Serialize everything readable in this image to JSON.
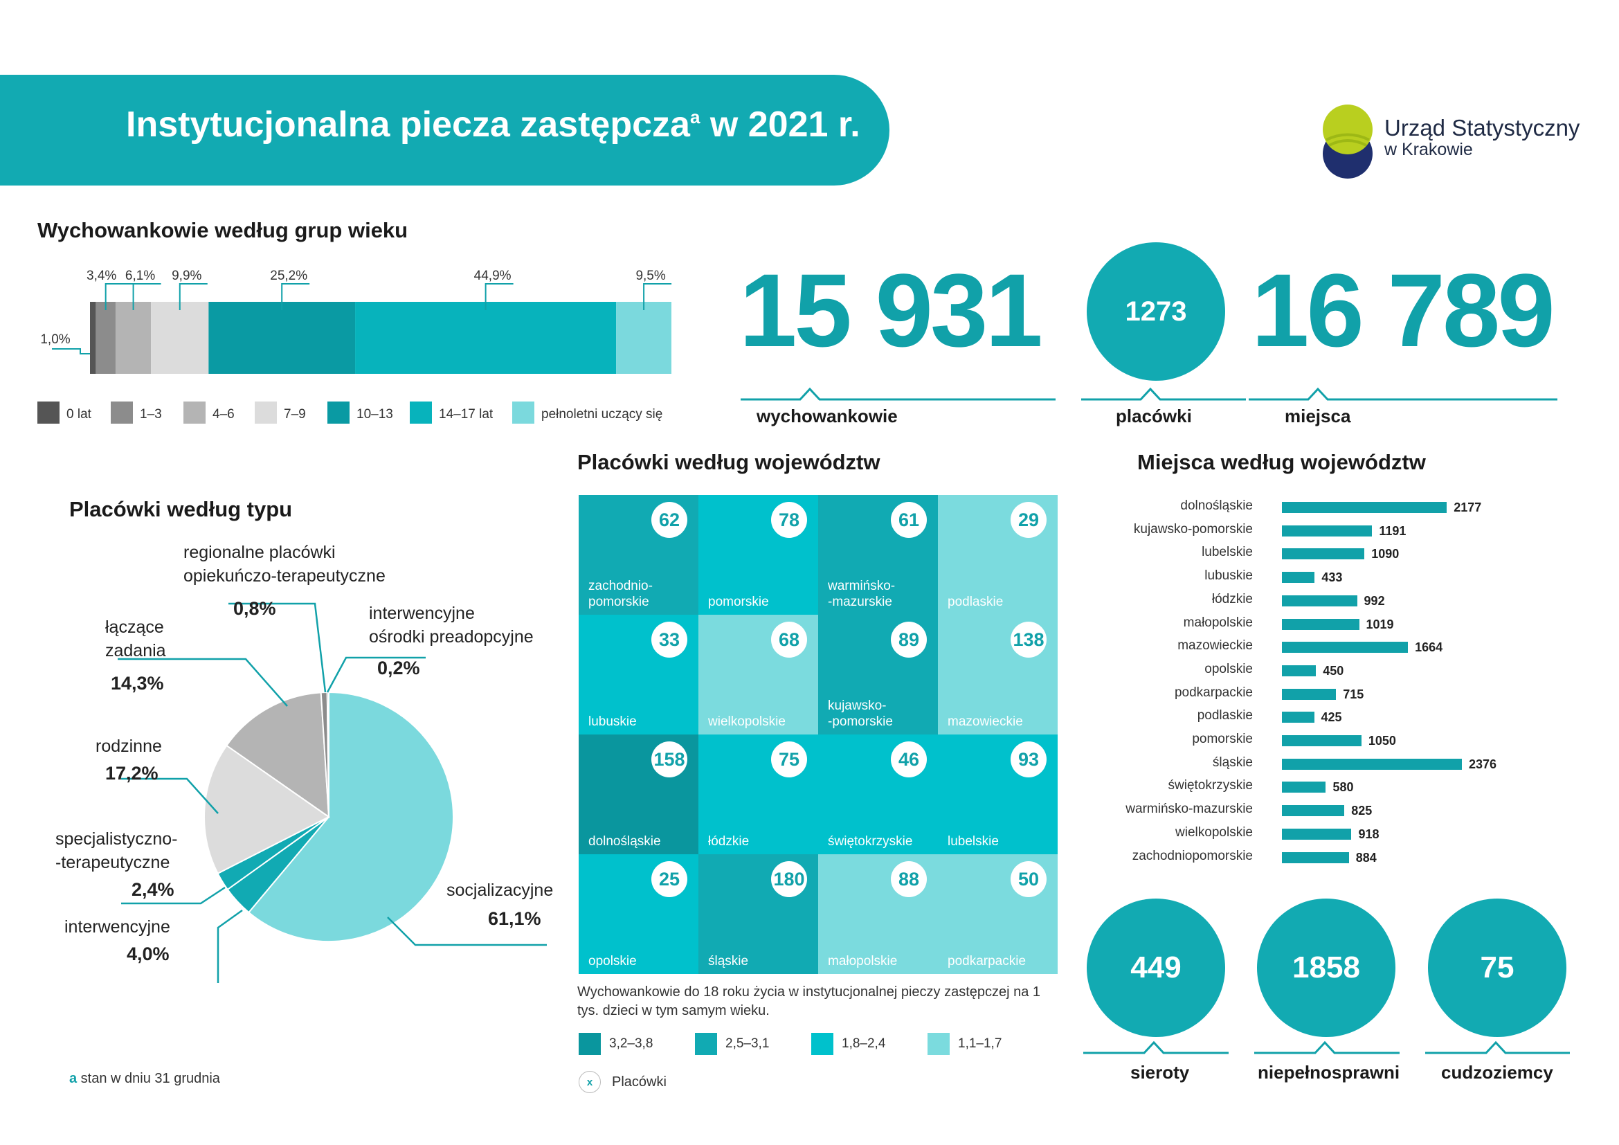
{
  "header": {
    "title": "Instytucjonalna piecza zastępcza",
    "title_sup": "a",
    "title_year": " w 2021 r.",
    "logo_line1": "Urząd Statystyczny",
    "logo_line2": "w Krakowie"
  },
  "age_section": {
    "title": "Wychowankowie według grup wieku"
  },
  "pie_section": {
    "title": "Placówki według typu"
  },
  "grid_section": {
    "title": "Placówki według województw",
    "caption": "Wychowankowie do 18 roku życia w instytucjonalnej pieczy zastępczej na 1 tys. dzieci w tym samym wieku.",
    "legend": [
      {
        "label": "3,2–3,8",
        "color": "#0a969e"
      },
      {
        "label": "2,5–3,1",
        "color": "#11aab3"
      },
      {
        "label": "1,8–2,4",
        "color": "#00c1cc"
      },
      {
        "label": "1,1–1,7",
        "color": "#7bdbde"
      }
    ],
    "marker_symbol": "x",
    "marker_label": "Placówki"
  },
  "bar_section": {
    "title": "Miejsca według województw"
  },
  "stats": {
    "wychowankowie": {
      "value": "15 931",
      "label": "wychowankowie"
    },
    "placowki": {
      "value": "1273",
      "label": "placówki"
    },
    "miejsca": {
      "value": "16 789",
      "label": "miejsca"
    },
    "sieroty": {
      "value": "449",
      "label": "sieroty"
    },
    "niepelnosprawni": {
      "value": "1858",
      "label": "niepełnosprawni"
    },
    "cudzoziemcy": {
      "value": "75",
      "label": "cudzoziemcy"
    }
  },
  "footnote": {
    "marker": "a",
    "text": " stan w dniu 31 grudnia"
  },
  "chart_data": [
    {
      "type": "bar",
      "orientation": "horizontal-stacked",
      "title": "Wychowankowie według grup wieku",
      "series": [
        {
          "name": "0 lat",
          "value": 1.0,
          "label": "1,0%",
          "color": "#555555"
        },
        {
          "name": "1–3",
          "value": 3.4,
          "label": "3,4%",
          "color": "#8c8c8c"
        },
        {
          "name": "4–6",
          "value": 6.1,
          "label": "6,1%",
          "color": "#b4b4b4"
        },
        {
          "name": "7–9",
          "value": 9.9,
          "label": "9,9%",
          "color": "#dcdcdc"
        },
        {
          "name": "10–13",
          "value": 25.2,
          "label": "25,2%",
          "color": "#0a9aa3"
        },
        {
          "name": "14–17 lat",
          "value": 44.9,
          "label": "44,9%",
          "color": "#07b3bc"
        },
        {
          "name": "pełnoletni uczący się",
          "value": 9.5,
          "label": "9,5%",
          "color": "#7bd9dd"
        }
      ]
    },
    {
      "type": "pie",
      "title": "Placówki według typu",
      "slices": [
        {
          "name": "socjalizacyjne",
          "value": 61.1,
          "label": "61,1%",
          "color": "#7bd9dd"
        },
        {
          "name": "interwencyjne",
          "value": 4.0,
          "label": "4,0%",
          "color": "#11aab3"
        },
        {
          "name": "specjalistyczno-\n-terapeutyczne",
          "value": 2.4,
          "label": "2,4%",
          "color": "#11aab3"
        },
        {
          "name": "rodzinne",
          "value": 17.2,
          "label": "17,2%",
          "color": "#dcdcdc"
        },
        {
          "name": "łączące\nzadania",
          "value": 14.3,
          "label": "14,3%",
          "color": "#b4b4b4"
        },
        {
          "name": "regionalne placówki\nopiekuńczo-terapeutyczne",
          "value": 0.8,
          "label": "0,8%",
          "color": "#8c8c8c"
        },
        {
          "name": "interwencyjne\nośrodki preadopcyjne",
          "value": 0.2,
          "label": "0,2%",
          "color": "#555555"
        }
      ]
    },
    {
      "type": "table",
      "title": "Placówki według województw",
      "cells": [
        {
          "name": "zachodnio-\npomorskie",
          "value": 62,
          "color": "#11aab3"
        },
        {
          "name": "pomorskie",
          "value": 78,
          "color": "#00c1cc"
        },
        {
          "name": "warmińsko-\n-mazurskie",
          "value": 61,
          "color": "#11aab3"
        },
        {
          "name": "podlaskie",
          "value": 29,
          "color": "#7bdbde"
        },
        {
          "name": "lubuskie",
          "value": 33,
          "color": "#00c1cc"
        },
        {
          "name": "wielkopolskie",
          "value": 68,
          "color": "#7bdbde"
        },
        {
          "name": "kujawsko-\n-pomorskie",
          "value": 89,
          "color": "#11aab3"
        },
        {
          "name": "mazowieckie",
          "value": 138,
          "color": "#7bdbde"
        },
        {
          "name": "dolnośląskie",
          "value": 158,
          "color": "#0a969e"
        },
        {
          "name": "łódzkie",
          "value": 75,
          "color": "#00c1cc"
        },
        {
          "name": "świętokrzyskie",
          "value": 46,
          "color": "#00c1cc"
        },
        {
          "name": "lubelskie",
          "value": 93,
          "color": "#00c1cc"
        },
        {
          "name": "opolskie",
          "value": 25,
          "color": "#00c1cc"
        },
        {
          "name": "śląskie",
          "value": 180,
          "color": "#11aab3"
        },
        {
          "name": "małopolskie",
          "value": 88,
          "color": "#7bdbde"
        },
        {
          "name": "podkarpackie",
          "value": 50,
          "color": "#7bdbde"
        }
      ]
    },
    {
      "type": "bar",
      "orientation": "horizontal",
      "title": "Miejsca według województw",
      "categories": [
        "dolnośląskie",
        "kujawsko-pomorskie",
        "lubelskie",
        "lubuskie",
        "łódzkie",
        "małopolskie",
        "mazowieckie",
        "opolskie",
        "podkarpackie",
        "podlaskie",
        "pomorskie",
        "śląskie",
        "świętokrzyskie",
        "warmińsko-mazurskie",
        "wielkopolskie",
        "zachodniopomorskie"
      ],
      "values": [
        2177,
        1191,
        1090,
        433,
        992,
        1019,
        1664,
        450,
        715,
        425,
        1050,
        2376,
        580,
        825,
        918,
        884
      ],
      "labels": [
        "2177",
        "1191",
        "1090",
        "433",
        "992",
        "1019",
        "1664",
        "450",
        "715",
        "425",
        "1050",
        "2376",
        "580",
        "825",
        "918",
        "884"
      ],
      "color": "#11a1a9"
    }
  ]
}
